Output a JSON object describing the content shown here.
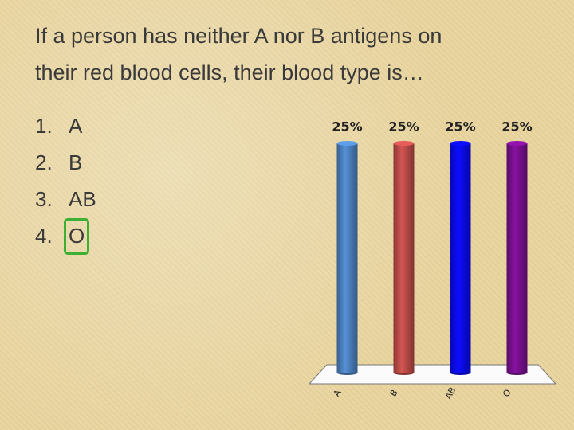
{
  "question": [
    "If a person has neither A nor B antigens on",
    "their red blood cells, their blood type is…"
  ],
  "options": [
    {
      "number": "1.",
      "label": "A"
    },
    {
      "number": "2.",
      "label": "B"
    },
    {
      "number": "3.",
      "label": "AB"
    },
    {
      "number": "4.",
      "label": "O"
    }
  ],
  "chart_data": {
    "type": "bar",
    "categories": [
      "A",
      "B",
      "AB",
      "O"
    ],
    "values": [
      25,
      25,
      25,
      25
    ],
    "value_labels": [
      "25%",
      "25%",
      "25%",
      "25%"
    ],
    "colors": [
      "#4a7ebb",
      "#b84a47",
      "#0a0aee",
      "#76108c"
    ]
  }
}
